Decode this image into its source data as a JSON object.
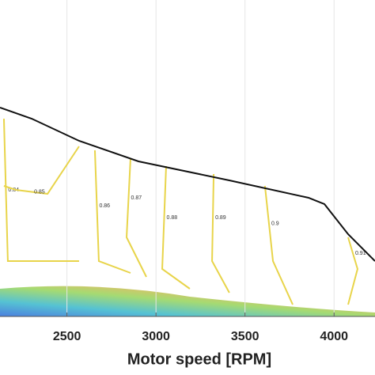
{
  "chart_data": {
    "type": "contour",
    "x_label": "Motor speed [RPM]",
    "xlim": [
      2124,
      4230
    ],
    "xticks": [
      2500,
      3000,
      3500,
      4000
    ],
    "ylim": [
      0,
      100
    ],
    "grid": true,
    "series": [
      {
        "color": "#111111",
        "x": [
          2124,
          2302,
          2568,
          2902,
          3412,
          3857,
          3946,
          4079,
          4230
        ],
        "values": [
          66,
          62.5,
          55.5,
          49,
          43,
          37.5,
          35.5,
          26,
          17.5
        ]
      }
    ],
    "contour_color": "#e8d44a",
    "contours": [
      {
        "level": 0.84,
        "x": [
          2146,
          2168,
          2568
        ],
        "y": [
          62.5,
          17.5,
          17.5
        ]
      },
      {
        "level": 0.85,
        "x": [
          2568,
          2391,
          2213,
          2146
        ],
        "y": [
          53.75,
          38.75,
          40,
          41.25
        ]
      },
      {
        "level": 0.86,
        "x": [
          2657,
          2679,
          2857
        ],
        "y": [
          52.5,
          17.5,
          13.75
        ]
      },
      {
        "level": 0.87,
        "x": [
          2857,
          2835,
          2946
        ],
        "y": [
          50,
          25,
          12.5
        ]
      },
      {
        "level": 0.88,
        "x": [
          3057,
          3035,
          3190
        ],
        "y": [
          47.5,
          15,
          8.75
        ]
      },
      {
        "level": 0.89,
        "x": [
          3324,
          3315,
          3412
        ],
        "y": [
          45,
          17.5,
          7.5
        ]
      },
      {
        "level": 0.9,
        "x": [
          3612,
          3657,
          3768
        ],
        "y": [
          41.25,
          17.5,
          3.75
        ]
      },
      {
        "level": 0.91,
        "x": [
          4079,
          4132,
          4079
        ],
        "y": [
          25,
          15,
          3.75
        ]
      }
    ]
  }
}
